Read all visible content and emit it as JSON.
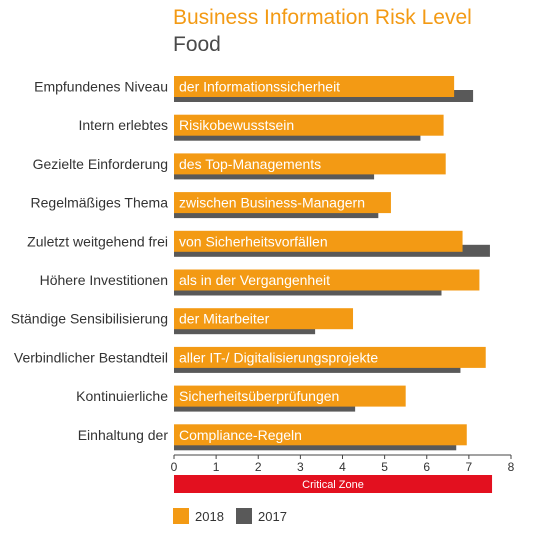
{
  "colors": {
    "series_2018": "#F39A14",
    "series_2017": "#595959",
    "critical_zone": "#E3101F",
    "bar_text": "#ffffff"
  },
  "chart_data": {
    "type": "bar",
    "orientation": "horizontal",
    "title": "Business Information Risk Level",
    "subtitle": "Food",
    "categories": [
      "Empfundenes Niveau",
      "Intern erlebtes",
      "Gezielte Einforderung",
      "Regelmäßiges Thema",
      "Zuletzt weitgehend frei",
      "Höhere Investitionen",
      "Ständige Sensibilisierung",
      "Verbindlicher Bestandteil",
      "Kontinuierliche",
      "Einhaltung der"
    ],
    "bar_labels": [
      "der Informationssicherheit",
      "Risikobewusstsein",
      "des Top-Managements",
      "zwischen Business-Managern",
      "von Sicherheitsvorfällen",
      "als in der Vergangenheit",
      "der Mitarbeiter",
      "aller IT-/ Digitalisierungsprojekte",
      "Sicherheitsüberprüfungen",
      "Compliance-Regeln"
    ],
    "series": [
      {
        "name": "2018",
        "values": [
          6.65,
          6.4,
          6.45,
          5.15,
          6.85,
          7.25,
          4.25,
          7.4,
          5.5,
          6.95
        ]
      },
      {
        "name": "2017",
        "values": [
          7.1,
          5.85,
          4.75,
          4.85,
          7.5,
          6.35,
          3.35,
          6.8,
          4.3,
          6.7
        ]
      }
    ],
    "xlim": [
      0,
      8
    ],
    "xticks": [
      "0",
      "1",
      "2",
      "3",
      "4",
      "5",
      "6",
      "7",
      "8"
    ],
    "critical_zone": {
      "label": "Critical Zone",
      "from": 0,
      "to": 7.55
    },
    "legend_position": "bottom-left"
  }
}
